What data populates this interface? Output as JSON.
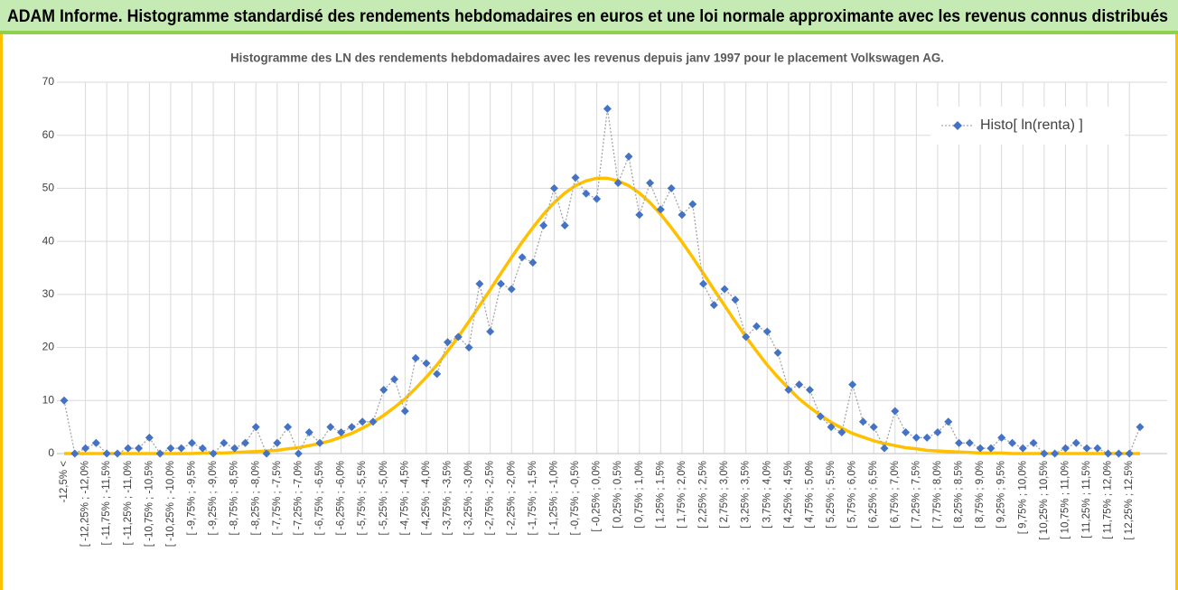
{
  "header": {
    "title": "ADAM Informe. Histogramme standardisé des rendements hebdomadaires en euros et une loi normale approximante avec les revenus connus distribués"
  },
  "chart_data": {
    "type": "line",
    "title": "Histogramme des LN des rendements hebdomadaires avec les revenus depuis janv 1997 pour le placement Volkswagen AG.",
    "categories": [
      "-12,5% <",
      null,
      "[ -12,25% ; -12,0%",
      null,
      "[ -11,75% ; -11,5%",
      null,
      "[ -11,25% ; -11,0%",
      null,
      "[ -10,75% ; -10,5%",
      null,
      "[ -10,25% ; -10,0%",
      null,
      "[ -9,75% ; -9,5%",
      null,
      "[ -9,25% ; -9,0%",
      null,
      "[ -8,75% ; -8,5%",
      null,
      "[ -8,25% ; -8,0%",
      null,
      "[ -7,75% ; -7,5%",
      null,
      "[ -7,25% ; -7,0%",
      null,
      "[ -6,75% ; -6,5%",
      null,
      "[ -6,25% ; -6,0%",
      null,
      "[ -5,75% ; -5,5%",
      null,
      "[ -5,25% ; -5,0%",
      null,
      "[ -4,75% ; -4,5%",
      null,
      "[ -4,25% ; -4,0%",
      null,
      "[ -3,75% ; -3,5%",
      null,
      "[ -3,25% ; -3,0%",
      null,
      "[ -2,75% ; -2,5%",
      null,
      "[ -2,25% ; -2,0%",
      null,
      "[ -1,75% ; -1,5%",
      null,
      "[ -1,25% ; -1,0%",
      null,
      "[ -0,75% ; -0,5%",
      null,
      "[ -0,25% ; 0,0%",
      null,
      "[ 0,25% ; 0,5%",
      null,
      "[ 0,75% ; 1,0%",
      null,
      "[ 1,25% ; 1,5%",
      null,
      "[ 1,75% ; 2,0%",
      null,
      "[ 2,25% ; 2,5%",
      null,
      "[ 2,75% ; 3,0%",
      null,
      "[ 3,25% ; 3,5%",
      null,
      "[ 3,75% ; 4,0%",
      null,
      "[ 4,25% ; 4,5%",
      null,
      "[ 4,75% ; 5,0%",
      null,
      "[ 5,25% ; 5,5%",
      null,
      "[ 5,75% ; 6,0%",
      null,
      "[ 6,25% ; 6,5%",
      null,
      "[ 6,75% ; 7,0%",
      null,
      "[ 7,25% ; 7,5%",
      null,
      "[ 7,75% ; 8,0%",
      null,
      "[ 8,25% ; 8,5%",
      null,
      "[ 8,75% ; 9,0%",
      null,
      "[ 9,25% ; 9,5%",
      null,
      "[ 9,75% ; 10,0%",
      null,
      "[ 10,25% ; 10,5%",
      null,
      "[ 10,75% ; 11,0%",
      null,
      "[ 11,25% ; 11,5%",
      null,
      "[ 11,75% ; 12,0%",
      null,
      "[ 12,25% ; 12,5%",
      null
    ],
    "series": [
      {
        "name": "Histo[ ln(renta) ]",
        "color": "#4472c4",
        "style": "markers-dotted",
        "values": [
          10,
          0,
          1,
          2,
          0,
          0,
          1,
          1,
          3,
          0,
          1,
          1,
          2,
          1,
          0,
          2,
          1,
          2,
          5,
          0,
          2,
          5,
          0,
          4,
          2,
          5,
          4,
          5,
          6,
          6,
          12,
          14,
          8,
          18,
          17,
          15,
          21,
          22,
          20,
          32,
          23,
          32,
          31,
          37,
          36,
          43,
          50,
          43,
          52,
          49,
          48,
          65,
          51,
          56,
          45,
          51,
          46,
          50,
          45,
          47,
          32,
          28,
          31,
          29,
          22,
          24,
          23,
          19,
          12,
          13,
          12,
          7,
          5,
          4,
          13,
          6,
          5,
          1,
          8,
          4,
          3,
          3,
          4,
          6,
          2,
          2,
          1,
          1,
          3,
          2,
          1,
          2,
          0,
          0,
          1,
          2,
          1,
          1,
          0,
          0,
          0,
          5
        ]
      },
      {
        "color": "#ffc000",
        "style": "smooth",
        "values": [
          0,
          0,
          0,
          0,
          0,
          0,
          0,
          0,
          0,
          0,
          0,
          0,
          0,
          0.1,
          0.1,
          0.1,
          0.2,
          0.3,
          0.4,
          0.5,
          0.6,
          0.9,
          1.1,
          1.5,
          1.9,
          2.4,
          3.1,
          3.8,
          4.8,
          5.9,
          7.2,
          8.7,
          10.3,
          12.3,
          14.4,
          16.7,
          19.3,
          22.0,
          24.9,
          27.9,
          30.9,
          34.0,
          37.0,
          39.9,
          42.6,
          45.1,
          47.3,
          49.1,
          50.5,
          51.4,
          51.9,
          51.9,
          51.4,
          50.5,
          49.1,
          47.3,
          45.1,
          42.6,
          39.9,
          37.0,
          34.0,
          30.9,
          27.9,
          24.9,
          22.0,
          19.3,
          16.7,
          14.4,
          12.3,
          10.3,
          8.7,
          7.2,
          5.9,
          4.8,
          3.8,
          3.1,
          2.4,
          1.9,
          1.5,
          1.1,
          0.9,
          0.6,
          0.5,
          0.4,
          0.3,
          0.2,
          0.1,
          0.1,
          0.1,
          0,
          0,
          0,
          0,
          0,
          0,
          0,
          0,
          0,
          0,
          0,
          0,
          0
        ]
      }
    ],
    "ylim": [
      0,
      70
    ],
    "yticks": [
      0,
      10,
      20,
      30,
      40,
      50,
      60,
      70
    ],
    "grid": true,
    "legend": "top-right"
  }
}
